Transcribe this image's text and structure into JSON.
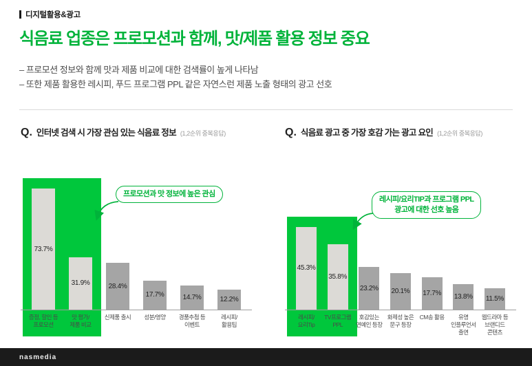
{
  "header": {
    "section": "디지털활용&광고"
  },
  "title": "식음료 업종은 프로모션과 함께, 맛/제품 활용 정보 중요",
  "bullets": [
    "– 프로모션 정보와 함께 맛과 제품 비교에 대한 검색률이 높게 나타남",
    "– 또한 제품 활용한 레시피, 푸드 프로그램 PPL 같은 자연스런 제품 노출 형태의 광고 선호"
  ],
  "q_label": "Q.",
  "colors": {
    "accent_green": "#00b33a",
    "highlight_green": "#00c73c",
    "bar_gray": "#a5a5a5",
    "bar_highlight_gray": "#dcdad6",
    "footer_bg": "#1b1b1b"
  },
  "chart_data": [
    {
      "type": "bar",
      "title": "인터넷 검색 시 가장 관심 있는 식음료 정보",
      "note": "(1,2순위 중복응답)",
      "categories": [
        "증정, 할인 등\n프로모션",
        "맛 평가/\n제품 비교",
        "신제품 출시",
        "성분/영양",
        "경품추첨 등\n이벤트",
        "레시피/\n활용팁"
      ],
      "values": [
        73.7,
        31.9,
        28.4,
        17.7,
        14.7,
        12.2
      ],
      "unit": "%",
      "ylim": [
        0,
        80
      ],
      "highlight_first_n": 2,
      "annotation": "프로모션과 맛 정보에 높은 관심",
      "legend": "none",
      "grid": false
    },
    {
      "type": "bar",
      "title": "식음료 광고 중 가장 호감 가는 광고 요인",
      "note": "(1,2순위 중복응답)",
      "categories": [
        "레시피/\n요리Tip",
        "TV프로그램\nPPL",
        "호감있는\n연예인 등장",
        "화제성 높은\n문구 등장",
        "CM송 활용",
        "유명\n인플루언서\n출연",
        "웹드라마 등\n브랜디드\n콘텐츠"
      ],
      "values": [
        45.3,
        35.8,
        23.2,
        20.1,
        17.7,
        13.8,
        11.5
      ],
      "unit": "%",
      "ylim": [
        0,
        50
      ],
      "highlight_first_n": 2,
      "annotation": "레시피/요리TIP과 프로그램 PPL\n광고에 대한 선호 높음",
      "legend": "none",
      "grid": false
    }
  ],
  "footer": {
    "brand": "nasmedia"
  }
}
